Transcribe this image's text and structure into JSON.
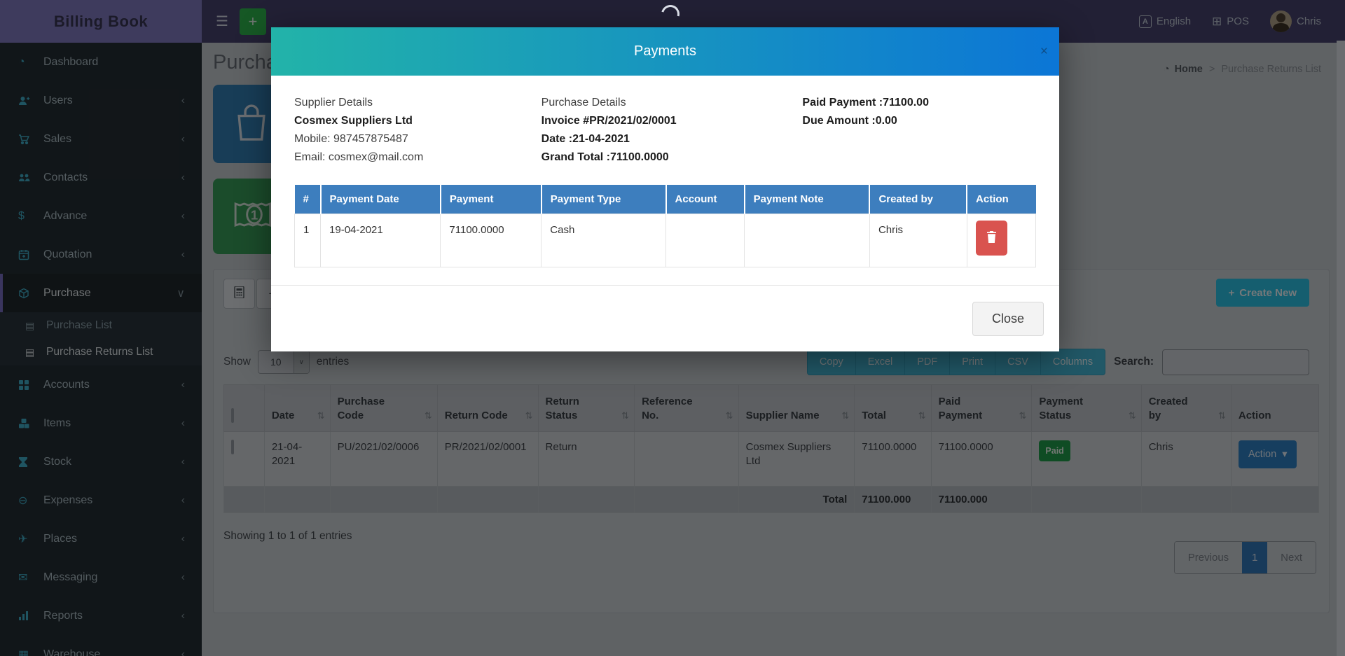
{
  "topbar": {
    "brand": "Billing Book",
    "language": "English",
    "pos": "POS",
    "user": "Chris"
  },
  "sidebar": {
    "items": [
      {
        "label": "Dashboard",
        "icon": "dashboard-icon",
        "has_children": false
      },
      {
        "label": "Users",
        "icon": "users-icon",
        "has_children": true
      },
      {
        "label": "Sales",
        "icon": "sales-icon",
        "has_children": true
      },
      {
        "label": "Contacts",
        "icon": "contacts-icon",
        "has_children": true
      },
      {
        "label": "Advance",
        "icon": "advance-icon",
        "has_children": true
      },
      {
        "label": "Quotation",
        "icon": "quotation-icon",
        "has_children": true
      },
      {
        "label": "Purchase",
        "icon": "purchase-icon",
        "has_children": true,
        "expanded": true,
        "active": true,
        "children": [
          {
            "label": "Purchase List",
            "current": false
          },
          {
            "label": "Purchase Returns List",
            "current": true
          }
        ]
      },
      {
        "label": "Accounts",
        "icon": "accounts-icon",
        "has_children": true
      },
      {
        "label": "Items",
        "icon": "items-icon",
        "has_children": true
      },
      {
        "label": "Stock",
        "icon": "stock-icon",
        "has_children": true
      },
      {
        "label": "Expenses",
        "icon": "expenses-icon",
        "has_children": true
      },
      {
        "label": "Places",
        "icon": "places-icon",
        "has_children": true
      },
      {
        "label": "Messaging",
        "icon": "messaging-icon",
        "has_children": true
      },
      {
        "label": "Reports",
        "icon": "reports-icon",
        "has_children": true
      },
      {
        "label": "Warehouse",
        "icon": "warehouse-icon",
        "has_children": true
      }
    ]
  },
  "page": {
    "title": "Purchase Returns List",
    "breadcrumb": {
      "home": "Home",
      "separator": ">",
      "current": "Purchase Returns List"
    }
  },
  "toolbar": {
    "create_new": "Create New",
    "create_new_plus": "+"
  },
  "datatable": {
    "show_label": "Show",
    "page_size": "10",
    "entries_label": "entries",
    "export_buttons": [
      "Copy",
      "Excel",
      "PDF",
      "Print",
      "CSV",
      "Columns"
    ],
    "search_label": "Search:",
    "columns": [
      {
        "label": "",
        "type": "checkbox",
        "sortable": false
      },
      {
        "label": "Date",
        "sortable": true
      },
      {
        "label": "Purchase Code",
        "sortable": true
      },
      {
        "label": "Return Code",
        "sortable": true
      },
      {
        "label": "Return Status",
        "sortable": true
      },
      {
        "label": "Reference No.",
        "sortable": true
      },
      {
        "label": "Supplier Name",
        "sortable": true
      },
      {
        "label": "Total",
        "sortable": true
      },
      {
        "label": "Paid Payment",
        "sortable": true
      },
      {
        "label": "Payment Status",
        "sortable": true
      },
      {
        "label": "Created by",
        "sortable": true
      },
      {
        "label": "Action",
        "sortable": false
      }
    ],
    "row": {
      "date": "21-04-2021",
      "purchase_code": "PU/2021/02/0006",
      "return_code": "PR/2021/02/0001",
      "return_status": "Return",
      "reference_no": "",
      "supplier_name": "Cosmex Suppliers Ltd",
      "total": "71100.0000",
      "paid_payment": "71100.0000",
      "payment_status": "Paid",
      "created_by": "Chris",
      "action_label": "Action"
    },
    "total_row": {
      "label": "Total",
      "total": "71100.000",
      "paid_payment": "71100.000"
    },
    "summary": "Showing 1 to 1 of 1 entries",
    "pagination": {
      "previous": "Previous",
      "page": "1",
      "next": "Next"
    }
  },
  "modal": {
    "title": "Payments",
    "close_x": "×",
    "supplier": {
      "heading": "Supplier Details",
      "name": "Cosmex Suppliers Ltd",
      "mobile": "Mobile: 987457875487",
      "email": "Email: cosmex@mail.com"
    },
    "purchase": {
      "heading": "Purchase Details",
      "invoice": "Invoice #PR/2021/02/0001",
      "date": "Date :21-04-2021",
      "grand_total": "Grand Total :71100.0000"
    },
    "summary": {
      "paid": "Paid Payment :71100.00",
      "due": "Due Amount :0.00"
    },
    "table": {
      "columns": [
        "#",
        "Payment Date",
        "Payment",
        "Payment Type",
        "Account",
        "Payment Note",
        "Created by",
        "Action"
      ],
      "rows": [
        {
          "cells": [
            "1",
            "19-04-2021",
            "71100.0000",
            "Cash",
            "",
            "",
            "Chris"
          ],
          "action": "delete"
        }
      ]
    },
    "close_label": "Close"
  },
  "colors": {
    "topbar_purple": "#474370",
    "logo_purple": "#837cc2",
    "sidebar_bg": "#252f35",
    "sidebar_icon_teal": "#41b0cb",
    "modal_header_gradient_left": "#22b3a9",
    "modal_header_gradient_right": "#0c76d6",
    "modal_table_header_blue": "#3d7ebe",
    "danger_red": "#d9534f",
    "paid_green": "#21a04d",
    "create_new_teal": "#2cc4e8",
    "action_blue": "#2f83c7",
    "card_blue": "#3481b7",
    "card_green": "#3aa05a",
    "add_button_green": "#2eb84f",
    "backdrop": "rgba(0,0,0,0.52)"
  }
}
